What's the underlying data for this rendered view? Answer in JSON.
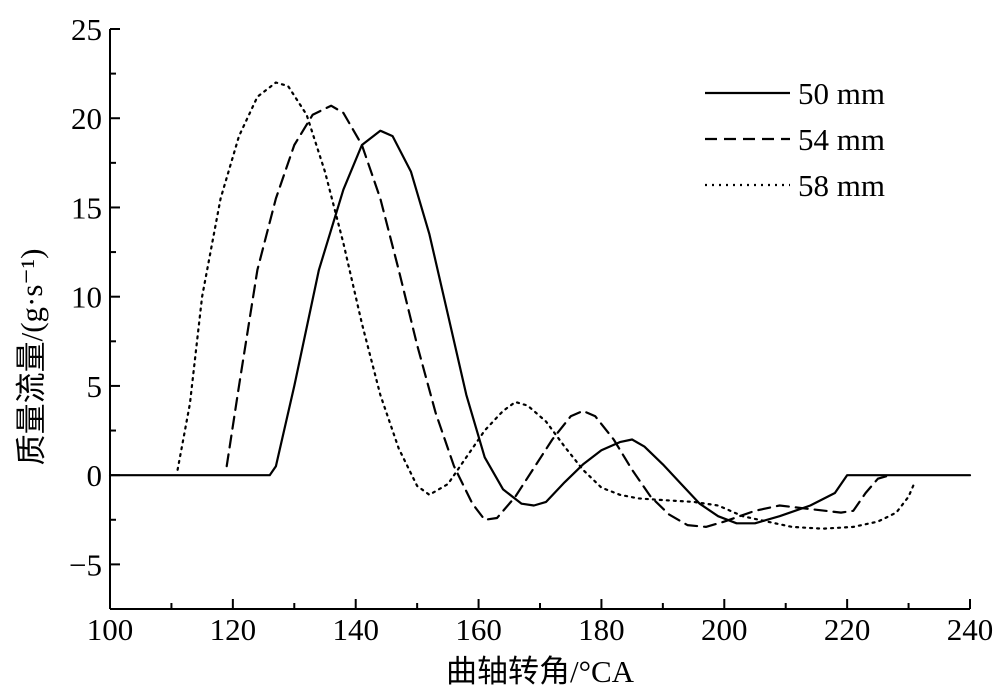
{
  "chart_data": {
    "type": "line",
    "title": "",
    "xlabel": "曲轴转角/°CA",
    "ylabel": "质量流量/(g·s⁻¹)",
    "xlim": [
      100,
      240
    ],
    "ylim": [
      -7.5,
      25
    ],
    "x_ticks": [
      100,
      120,
      140,
      160,
      180,
      200,
      220,
      240
    ],
    "x_tick_labels": [
      "100",
      "120",
      "140",
      "160",
      "180",
      "200",
      "220",
      "240"
    ],
    "y_ticks": [
      -5,
      0,
      5,
      10,
      15,
      20,
      25
    ],
    "y_tick_labels": [
      "−5",
      "0",
      "5",
      "10",
      "15",
      "20",
      "25"
    ],
    "grid": false,
    "legend_position": "top-right",
    "series": [
      {
        "name": "50 mm",
        "line_style": "solid",
        "color": "#000000",
        "points": [
          [
            100,
            0
          ],
          [
            126,
            0
          ],
          [
            127,
            0.5
          ],
          [
            130,
            5
          ],
          [
            134,
            11.5
          ],
          [
            138,
            16
          ],
          [
            141,
            18.5
          ],
          [
            144,
            19.3
          ],
          [
            146,
            19
          ],
          [
            149,
            17
          ],
          [
            152,
            13.5
          ],
          [
            155,
            9
          ],
          [
            158,
            4.5
          ],
          [
            161,
            1
          ],
          [
            164,
            -0.8
          ],
          [
            167,
            -1.6
          ],
          [
            169,
            -1.7
          ],
          [
            171,
            -1.5
          ],
          [
            174,
            -0.4
          ],
          [
            177,
            0.6
          ],
          [
            180,
            1.4
          ],
          [
            183,
            1.85
          ],
          [
            185,
            2
          ],
          [
            187,
            1.6
          ],
          [
            190,
            0.6
          ],
          [
            193,
            -0.5
          ],
          [
            196,
            -1.6
          ],
          [
            199,
            -2.3
          ],
          [
            202,
            -2.7
          ],
          [
            205,
            -2.7
          ],
          [
            209,
            -2.3
          ],
          [
            214,
            -1.7
          ],
          [
            218,
            -1
          ],
          [
            220,
            0
          ],
          [
            240,
            0
          ]
        ]
      },
      {
        "name": "54 mm",
        "line_style": "dashed",
        "color": "#000000",
        "points": [
          [
            119,
            0.5
          ],
          [
            121,
            5
          ],
          [
            124,
            11.5
          ],
          [
            127,
            15.5
          ],
          [
            130,
            18.5
          ],
          [
            133,
            20.2
          ],
          [
            136,
            20.7
          ],
          [
            138,
            20.3
          ],
          [
            141,
            18.5
          ],
          [
            144,
            15.5
          ],
          [
            147,
            11.5
          ],
          [
            150,
            7.3
          ],
          [
            153,
            3.5
          ],
          [
            156,
            0.5
          ],
          [
            159,
            -1.6
          ],
          [
            161,
            -2.5
          ],
          [
            163,
            -2.4
          ],
          [
            166,
            -1.2
          ],
          [
            169,
            0.4
          ],
          [
            172,
            2
          ],
          [
            175,
            3.3
          ],
          [
            177,
            3.6
          ],
          [
            179,
            3.3
          ],
          [
            182,
            2
          ],
          [
            185,
            0.3
          ],
          [
            188,
            -1.2
          ],
          [
            191,
            -2.2
          ],
          [
            194,
            -2.8
          ],
          [
            197,
            -2.9
          ],
          [
            200,
            -2.6
          ],
          [
            205,
            -2
          ],
          [
            209,
            -1.7
          ],
          [
            214,
            -1.9
          ],
          [
            219,
            -2.1
          ],
          [
            221,
            -2
          ],
          [
            223,
            -1
          ],
          [
            225,
            -0.2
          ],
          [
            227,
            0
          ]
        ]
      },
      {
        "name": "58 mm",
        "line_style": "dotted",
        "color": "#000000",
        "points": [
          [
            111,
            0.3
          ],
          [
            113,
            4
          ],
          [
            115,
            10
          ],
          [
            118,
            15.5
          ],
          [
            121,
            19
          ],
          [
            124,
            21.2
          ],
          [
            127,
            22
          ],
          [
            129,
            21.8
          ],
          [
            132,
            20.2
          ],
          [
            135,
            17
          ],
          [
            138,
            13
          ],
          [
            141,
            8.5
          ],
          [
            144,
            4.5
          ],
          [
            147,
            1.5
          ],
          [
            150,
            -0.6
          ],
          [
            152,
            -1.1
          ],
          [
            155,
            -0.5
          ],
          [
            158,
            1
          ],
          [
            161,
            2.5
          ],
          [
            164,
            3.6
          ],
          [
            166,
            4.1
          ],
          [
            168,
            3.9
          ],
          [
            171,
            3
          ],
          [
            174,
            1.6
          ],
          [
            177,
            0.3
          ],
          [
            180,
            -0.7
          ],
          [
            183,
            -1.1
          ],
          [
            186,
            -1.3
          ],
          [
            190,
            -1.4
          ],
          [
            195,
            -1.5
          ],
          [
            199,
            -1.7
          ],
          [
            203,
            -2.3
          ],
          [
            207,
            -2.6
          ],
          [
            211,
            -2.9
          ],
          [
            216,
            -3
          ],
          [
            221,
            -2.9
          ],
          [
            225,
            -2.6
          ],
          [
            228,
            -2.1
          ],
          [
            230,
            -1.2
          ],
          [
            231,
            -0.4
          ]
        ]
      }
    ]
  }
}
